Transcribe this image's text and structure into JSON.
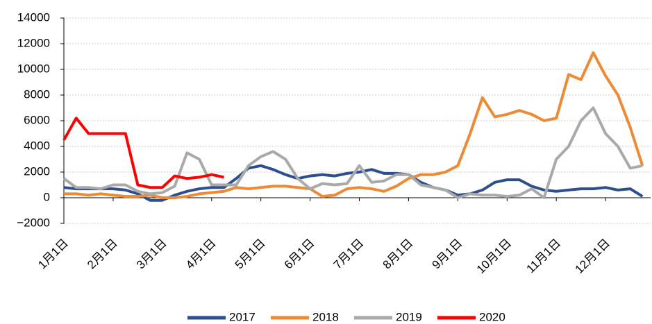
{
  "chart_data": {
    "type": "line",
    "categories": [
      "1月1日",
      null,
      null,
      null,
      "2月1日",
      null,
      null,
      null,
      "3月1日",
      null,
      null,
      null,
      "4月1日",
      null,
      null,
      null,
      "5月1日",
      null,
      null,
      null,
      "6月1日",
      null,
      null,
      null,
      "7月1日",
      null,
      null,
      null,
      "8月1日",
      null,
      null,
      null,
      "9月1日",
      null,
      null,
      null,
      "10月1日",
      null,
      null,
      null,
      "11月1日",
      null,
      null,
      null,
      "12月1日",
      null,
      null,
      null
    ],
    "series": [
      {
        "name": "2017",
        "color": "#2e4f8e",
        "values": [
          800,
          700,
          700,
          700,
          700,
          600,
          300,
          -200,
          -200,
          200,
          500,
          700,
          800,
          800,
          1500,
          2300,
          2500,
          2200,
          1800,
          1500,
          1700,
          1800,
          1700,
          1900,
          2000,
          2200,
          1900,
          1900,
          1800,
          1200,
          800,
          600,
          200,
          300,
          600,
          1200,
          1400,
          1400,
          900,
          600,
          500,
          600,
          700,
          700,
          800,
          600,
          700,
          100
        ]
      },
      {
        "name": "2018",
        "color": "#ed8a35",
        "values": [
          300,
          300,
          200,
          300,
          200,
          100,
          100,
          200,
          0,
          0,
          100,
          300,
          400,
          500,
          800,
          700,
          800,
          900,
          900,
          800,
          700,
          100,
          200,
          700,
          800,
          700,
          500,
          900,
          1500,
          1800,
          1800,
          2000,
          2500,
          5000,
          7800,
          6300,
          6500,
          6800,
          6500,
          6000,
          6200,
          9600,
          9200,
          11300,
          9500,
          8000,
          5500,
          2500
        ]
      },
      {
        "name": "2019",
        "color": "#a9a9a9",
        "values": [
          1500,
          800,
          800,
          700,
          1000,
          1000,
          500,
          300,
          400,
          900,
          3500,
          3000,
          1000,
          1000,
          1000,
          2500,
          3200,
          3600,
          3000,
          1500,
          700,
          1100,
          1000,
          1100,
          2500,
          1200,
          1300,
          1800,
          1800,
          1000,
          800,
          600,
          0,
          300,
          200,
          200,
          100,
          200,
          700,
          0,
          3000,
          4000,
          6000,
          7000,
          5000,
          4000,
          2300,
          2500
        ]
      },
      {
        "name": "2020",
        "color": "#ff0000",
        "values": [
          4500,
          6200,
          5000,
          5000,
          5000,
          5000,
          1000,
          800,
          800,
          1700,
          1500,
          1600,
          1800,
          1600,
          null,
          null,
          null,
          null,
          null,
          null,
          null,
          null,
          null,
          null,
          null,
          null,
          null,
          null,
          null,
          null,
          null,
          null,
          null,
          null,
          null,
          null,
          null,
          null,
          null,
          null,
          null,
          null,
          null,
          null,
          null,
          null,
          null,
          null
        ]
      }
    ],
    "ylim": [
      -2000,
      14000
    ],
    "yticks": [
      {
        "value": -2000,
        "label": "−2000"
      },
      0,
      2000,
      4000,
      6000,
      8000,
      10000,
      12000,
      14000
    ],
    "grid": true,
    "legend": "bottom"
  }
}
